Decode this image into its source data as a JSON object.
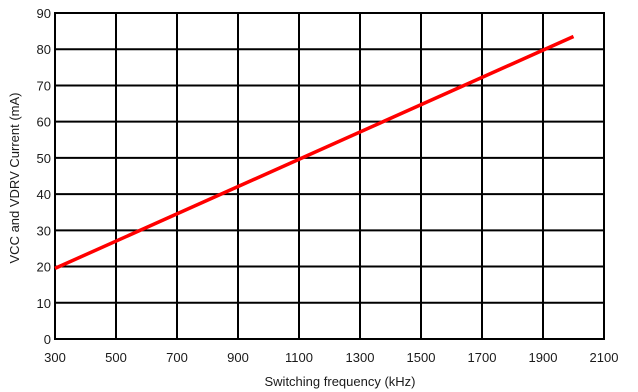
{
  "chart_data": {
    "type": "line",
    "title": "",
    "xlabel": "Switching frequency (kHz)",
    "ylabel": "VCC and VDRV Current (mA)",
    "xlim": [
      300,
      2100
    ],
    "ylim": [
      0,
      90
    ],
    "x_ticks": [
      "300",
      "500",
      "700",
      "900",
      "1100",
      "1300",
      "1500",
      "1700",
      "1900",
      "2100"
    ],
    "y_ticks": [
      "0",
      "10",
      "20",
      "30",
      "40",
      "50",
      "60",
      "70",
      "80",
      "90"
    ],
    "grid": true,
    "legend": "none",
    "series": [
      {
        "color": "#ff0000",
        "x": [
          300,
          2000
        ],
        "y": [
          19.5,
          83.5
        ]
      }
    ]
  }
}
